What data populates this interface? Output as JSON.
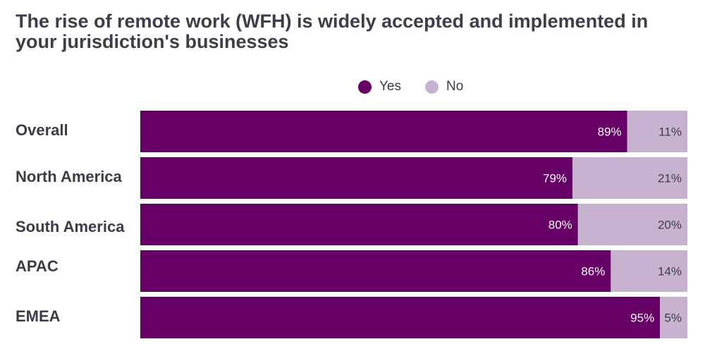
{
  "chart_data": {
    "type": "bar",
    "orientation": "horizontal",
    "stacked": true,
    "normalized_percent": true,
    "title": "The rise of remote work (WFH) is widely accepted and implemented in your jurisdiction's businesses",
    "categories": [
      "Overall",
      "North America",
      "South America",
      "APAC",
      "EMEA"
    ],
    "series": [
      {
        "name": "Yes",
        "values": [
          89,
          79,
          80,
          86,
          95
        ],
        "labels": [
          "89%",
          "79%",
          "80%",
          "86%",
          "95%"
        ],
        "color": "#660066"
      },
      {
        "name": "No",
        "values": [
          11,
          21,
          20,
          14,
          5
        ],
        "labels": [
          "11%",
          "21%",
          "20%",
          "14%",
          "5%"
        ],
        "color": "#c7b3cf"
      }
    ],
    "xlim": [
      0,
      100
    ],
    "legend": "top-center",
    "grid": false
  }
}
